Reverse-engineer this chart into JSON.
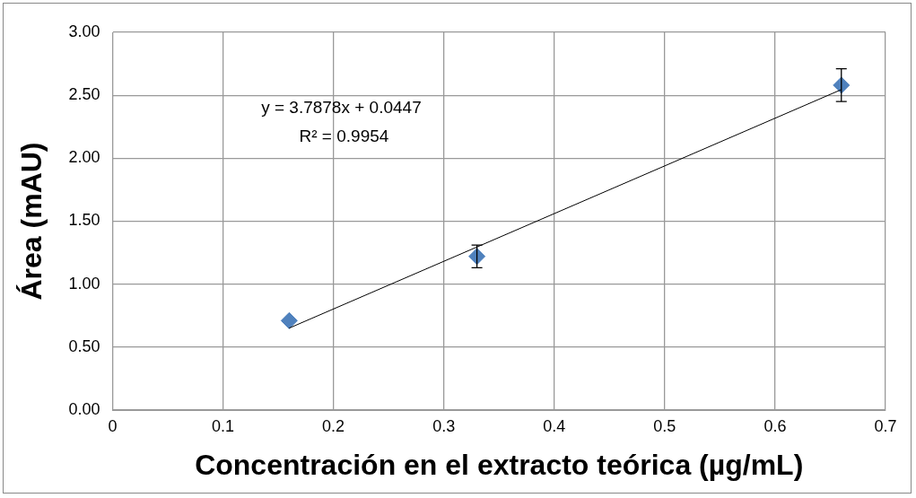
{
  "chart_data": {
    "type": "scatter",
    "xlabel": "Concentración en el extracto teórica (µg/mL)",
    "ylabel": "Área (mAU)",
    "xlim": [
      0,
      0.7
    ],
    "xticks": [
      {
        "value": 0,
        "label": "0"
      },
      0.1,
      0.2,
      0.3,
      0.4,
      0.5,
      0.6,
      0.7
    ],
    "ylim": [
      0,
      3
    ],
    "yticks": [
      {
        "value": 0,
        "label": "0.00"
      },
      {
        "value": 0.5,
        "label": "0.50"
      },
      {
        "value": 1,
        "label": "1.00"
      },
      {
        "value": 1.5,
        "label": "1.50"
      },
      {
        "value": 2,
        "label": "2.00"
      },
      {
        "value": 2.5,
        "label": "2.50"
      },
      {
        "value": 3,
        "label": "3.00"
      }
    ],
    "grid": true,
    "marker": "diamond",
    "legend": false,
    "series": [
      {
        "color": "#4f81bd",
        "x": [
          0.16,
          0.33,
          0.66
        ],
        "values": [
          0.71,
          1.22,
          2.58
        ],
        "errors": [
          null,
          0.09,
          0.13
        ]
      },
      {
        "type": "line",
        "color": "#000000",
        "x": [
          0.16,
          0.66
        ],
        "values": [
          0.651,
          2.545
        ],
        "marker": "none"
      }
    ],
    "annotations": [
      "y = 3.7878x + 0.0447",
      "R² = 0.9954"
    ]
  }
}
